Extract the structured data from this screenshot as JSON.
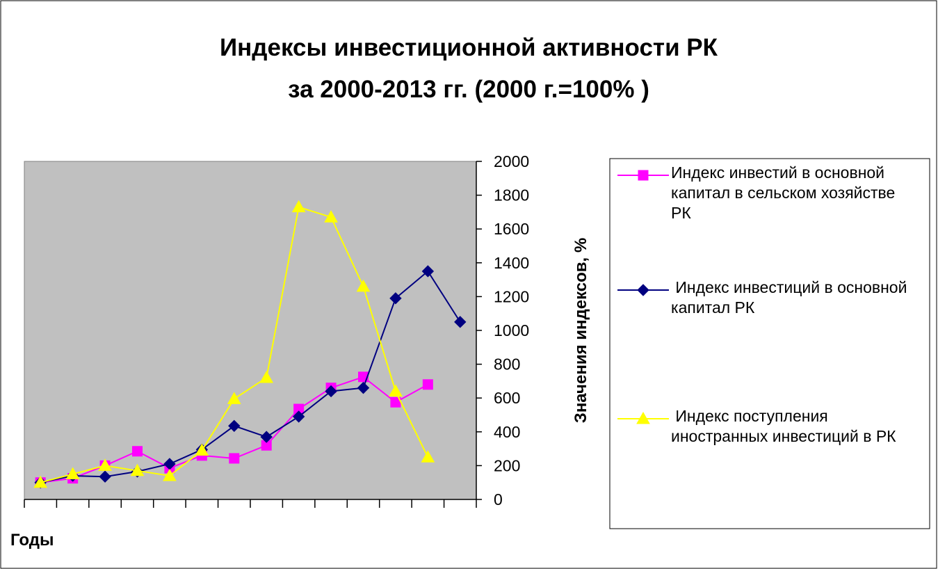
{
  "chart_data": {
    "type": "line",
    "title": [
      "Индексы инвестиционной активности РК",
      "за 2000-2013 гг.   (2000 г.=100% )"
    ],
    "x_label": "Годы",
    "y_label": "Значения индексов, %",
    "categories": [
      null,
      null,
      null,
      null,
      null,
      null,
      null,
      null,
      null,
      null,
      null,
      null,
      null,
      null
    ],
    "ylim": [
      0,
      2000
    ],
    "yticks": [
      0,
      200,
      400,
      600,
      800,
      1000,
      1200,
      1400,
      1600,
      1800,
      2000
    ],
    "grid": false,
    "legend": "right",
    "series": [
      {
        "name": "Индекс инвестий в основной капитал в сельском хозяйстве РК",
        "color": "#ff00ff",
        "marker": "square",
        "values": [
          100,
          125,
          200,
          285,
          185,
          260,
          243,
          320,
          535,
          660,
          725,
          575,
          680,
          null
        ]
      },
      {
        "name": " Индекс инвестиций в основной капитал РК",
        "color": "#000080",
        "marker": "diamond",
        "values": [
          100,
          140,
          135,
          165,
          210,
          295,
          435,
          370,
          490,
          640,
          660,
          1190,
          1350,
          1050
        ]
      },
      {
        "name": " Индекс поступления иностранных инвестиций в РК",
        "color": "#ffff00",
        "marker": "triangle",
        "values": [
          100,
          150,
          200,
          170,
          140,
          290,
          595,
          720,
          1730,
          1670,
          1260,
          640,
          250,
          null
        ]
      }
    ]
  }
}
